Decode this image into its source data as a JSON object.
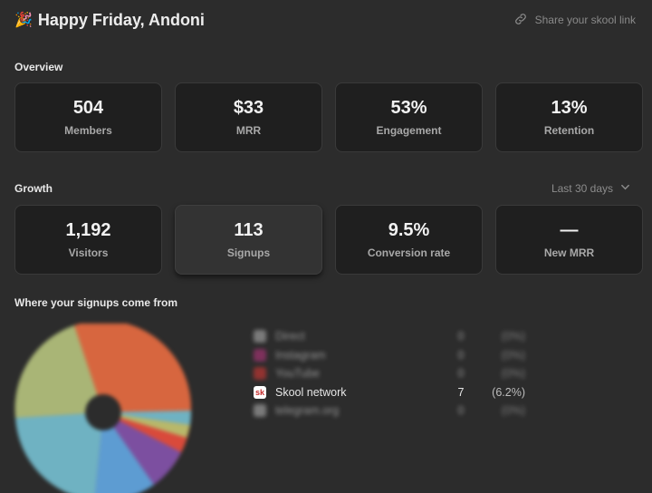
{
  "header": {
    "greeting": "Happy Friday, Andoni",
    "share_label": "Share your skool link"
  },
  "overview": {
    "title": "Overview",
    "cards": [
      {
        "value": "504",
        "label": "Members"
      },
      {
        "value": "$33",
        "label": "MRR"
      },
      {
        "value": "53%",
        "label": "Engagement"
      },
      {
        "value": "13%",
        "label": "Retention"
      }
    ]
  },
  "growth": {
    "title": "Growth",
    "range": "Last 30 days",
    "cards": [
      {
        "value": "1,192",
        "label": "Visitors"
      },
      {
        "value": "113",
        "label": "Signups"
      },
      {
        "value": "9.5%",
        "label": "Conversion rate"
      },
      {
        "value": "—",
        "label": "New MRR"
      }
    ]
  },
  "signups": {
    "title": "Where your signups come from",
    "sources": [
      {
        "name": "Direct",
        "count": "0",
        "pct": "(0%)",
        "icon": "direct-icon",
        "color": "#bbbbbb"
      },
      {
        "name": "Instagram",
        "count": "0",
        "pct": "(0%)",
        "icon": "instagram-icon",
        "color": "#c13584"
      },
      {
        "name": "YouTube",
        "count": "0",
        "pct": "(0%)",
        "icon": "youtube-icon",
        "color": "#e53935"
      },
      {
        "name": "Skool network",
        "count": "7",
        "pct": "(6.2%)",
        "icon": "skool-icon",
        "color": "#ffffff"
      },
      {
        "name": "telegram.org",
        "count": "0",
        "pct": "(0%)",
        "icon": "telegram-icon",
        "color": "#bbbbbb"
      }
    ]
  },
  "pie_colors": [
    "#d7663f",
    "#6fb2c2",
    "#a9b576",
    "#5d9cd2",
    "#7c4fa0",
    "#d94a3b",
    "#b8b86a"
  ]
}
